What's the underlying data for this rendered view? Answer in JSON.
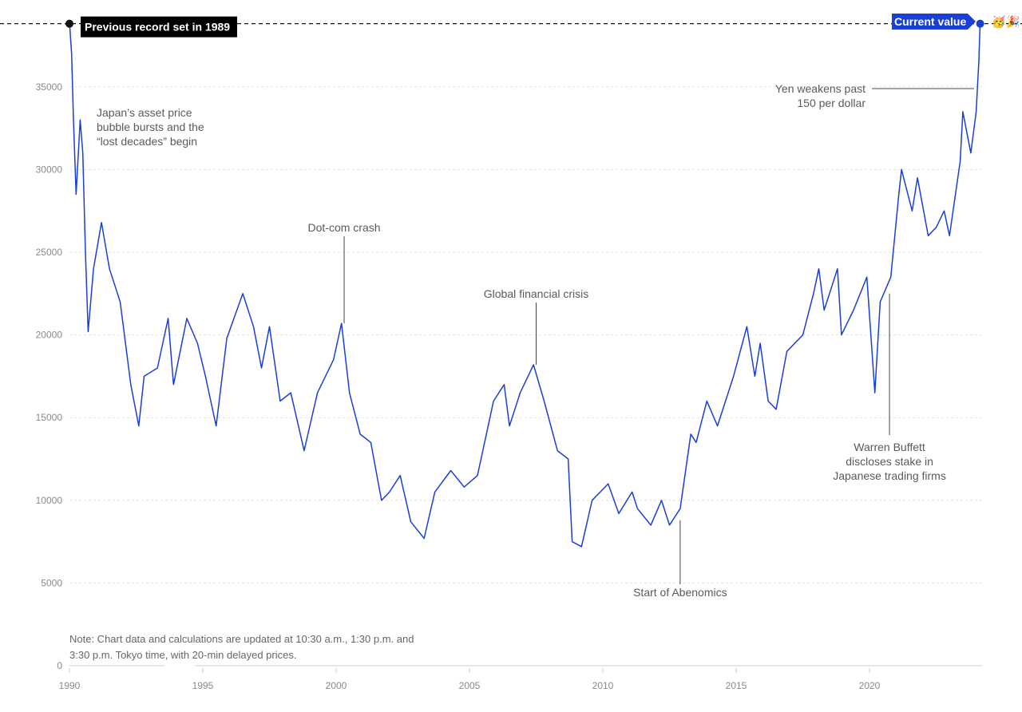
{
  "chart_data": {
    "type": "line",
    "title": "",
    "xlabel": "",
    "ylabel": "",
    "xlim": [
      1990,
      2024.3
    ],
    "ylim": [
      0,
      38916
    ],
    "grid": true,
    "line_color": "#1a3fd6",
    "yticks": [
      0,
      5000,
      10000,
      15000,
      20000,
      25000,
      30000,
      35000
    ],
    "xticks": [
      1990,
      1995,
      2000,
      2005,
      2010,
      2015,
      2020
    ],
    "record": {
      "value": 38916,
      "x": 1990.0,
      "label": "Previous record set in 1989"
    },
    "current": {
      "x": 2024.15,
      "value": 38916,
      "label": "Current value",
      "icons": [
        "party-face-icon",
        "party-popper-icon"
      ]
    },
    "x": [
      1990.0,
      1990.08,
      1990.15,
      1990.25,
      1990.4,
      1990.5,
      1990.6,
      1990.7,
      1990.9,
      1991.2,
      1991.5,
      1991.9,
      1992.3,
      1992.6,
      1992.8,
      1993.3,
      1993.7,
      1993.9,
      1994.4,
      1994.8,
      1995.1,
      1995.5,
      1995.9,
      1996.5,
      1996.9,
      1997.2,
      1997.5,
      1997.9,
      1998.3,
      1998.8,
      1999.3,
      1999.9,
      2000.2,
      2000.5,
      2000.9,
      2001.3,
      2001.7,
      2002.0,
      2002.4,
      2002.8,
      2003.3,
      2003.7,
      2004.3,
      2004.8,
      2005.3,
      2005.9,
      2006.3,
      2006.5,
      2006.9,
      2007.4,
      2007.8,
      2008.3,
      2008.7,
      2008.85,
      2009.2,
      2009.6,
      2010.2,
      2010.6,
      2011.1,
      2011.3,
      2011.8,
      2012.2,
      2012.5,
      2012.9,
      2013.3,
      2013.5,
      2013.9,
      2014.3,
      2014.9,
      2015.4,
      2015.7,
      2015.9,
      2016.2,
      2016.5,
      2016.9,
      2017.5,
      2017.9,
      2018.1,
      2018.3,
      2018.8,
      2018.95,
      2019.4,
      2019.9,
      2020.2,
      2020.4,
      2020.8,
      2021.1,
      2021.2,
      2021.6,
      2021.8,
      2022.2,
      2022.5,
      2022.8,
      2023.0,
      2023.4,
      2023.5,
      2023.8,
      2024.0,
      2024.1,
      2024.15
    ],
    "values": [
      38916,
      37000,
      33000,
      28500,
      33000,
      31000,
      25000,
      20200,
      24000,
      26800,
      24000,
      22000,
      17000,
      14500,
      17500,
      18000,
      21000,
      17000,
      21000,
      19500,
      17500,
      14500,
      19800,
      22500,
      20500,
      18000,
      20500,
      16000,
      16500,
      13000,
      16500,
      18500,
      20700,
      16500,
      14000,
      13500,
      10000,
      10500,
      11500,
      8700,
      7700,
      10500,
      11800,
      10800,
      11500,
      16000,
      17000,
      14500,
      16500,
      18200,
      16000,
      13000,
      12500,
      7500,
      7200,
      10000,
      11000,
      9200,
      10500,
      9500,
      8500,
      10000,
      8500,
      9500,
      14000,
      13500,
      16000,
      14500,
      17500,
      20500,
      17500,
      19500,
      16000,
      15500,
      19000,
      20000,
      22500,
      24000,
      21500,
      24000,
      20000,
      21500,
      23500,
      16500,
      22000,
      23500,
      28500,
      30000,
      27500,
      29500,
      26000,
      26500,
      27500,
      26000,
      30500,
      33500,
      31000,
      33500,
      36500,
      38916
    ],
    "annotations": [
      {
        "lines": [
          "Japan’s asset price",
          "bubble bursts and the",
          "“lost decades” begin"
        ],
        "x": 1990.8,
        "value": 33600
      },
      {
        "lines": [
          "Dot-com crash"
        ],
        "x": 2000.3,
        "value": 20700
      },
      {
        "lines": [
          "Global financial crisis"
        ],
        "x": 2007.5,
        "value": 18200
      },
      {
        "lines": [
          "Start of Abenomics"
        ],
        "x": 2012.9,
        "value": 8800
      },
      {
        "lines": [
          "Warren Buffett",
          "discloses stake in",
          "Japanese trading firms"
        ],
        "x": 2020.75,
        "value": 22500
      },
      {
        "lines": [
          "Yen weakens past",
          "150 per dollar"
        ],
        "x": 2023.9,
        "value": 34900
      }
    ],
    "note": [
      "Note: Chart data and calculations are updated at 10:30 a.m., 1:30 p.m. and",
      "3:30 p.m. Tokyo time, with 20-min delayed prices."
    ]
  }
}
